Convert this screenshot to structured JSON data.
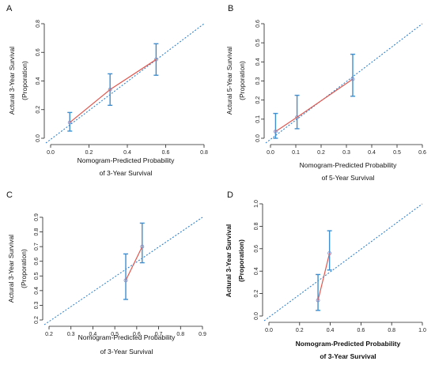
{
  "colors": {
    "calibration_line": "#e0584f",
    "diagonal": "#1f78c8",
    "error_bar": "#3f8fd0",
    "point": "#8a8fc0",
    "axis": "#222222"
  },
  "chart_data": [
    {
      "panel": "A",
      "type": "scatter",
      "xlabel": [
        "Nomogram-Predicted Probability",
        "of 3-Year Survival"
      ],
      "ylabel": [
        "Actural 3-Year Survival",
        "(Proporation)"
      ],
      "xlim": [
        0,
        0.8
      ],
      "ylim": [
        0,
        0.8
      ],
      "xticks": [
        "0.0",
        "0.2",
        "0.4",
        "0.6",
        "0.8"
      ],
      "yticks": [
        "0.0",
        "0.2",
        "0.4",
        "0.6",
        "0.8"
      ],
      "reference_line": {
        "style": "dotted",
        "slope": 1,
        "intercept": 0
      },
      "x": [
        0.1,
        0.31,
        0.55
      ],
      "y": [
        0.11,
        0.34,
        0.55
      ],
      "y_low": [
        0.05,
        0.23,
        0.44
      ],
      "y_high": [
        0.18,
        0.45,
        0.66
      ]
    },
    {
      "panel": "B",
      "type": "scatter",
      "xlabel": [
        "Nomogram-Predicted Probability",
        "of 5-Year Survival"
      ],
      "ylabel": [
        "Actural 5-Year Survival",
        "(Proporation)"
      ],
      "xlim": [
        0,
        0.6
      ],
      "ylim": [
        0,
        0.6
      ],
      "xticks": [
        "0.0",
        "0.1",
        "0.2",
        "0.3",
        "0.4",
        "0.5",
        "0.6"
      ],
      "yticks": [
        "0.0",
        "0.1",
        "0.2",
        "0.3",
        "0.4",
        "0.5",
        "0.6"
      ],
      "reference_line": {
        "style": "dotted",
        "slope": 1,
        "intercept": 0
      },
      "x": [
        0.02,
        0.105,
        0.325
      ],
      "y": [
        0.035,
        0.11,
        0.31
      ],
      "y_low": [
        0.0,
        0.05,
        0.22
      ],
      "y_high": [
        0.13,
        0.225,
        0.44
      ]
    },
    {
      "panel": "C",
      "type": "scatter",
      "xlabel": [
        "Nomogram-Predicted Probability",
        "of 3-Year Survival"
      ],
      "ylabel": [
        "Actural 3-Year Survival",
        "(Proporation)"
      ],
      "xlim": [
        0.2,
        0.9
      ],
      "ylim": [
        0.2,
        0.9
      ],
      "xticks": [
        "0.2",
        "0.3",
        "0.4",
        "0.5",
        "0.6",
        "0.7",
        "0.8",
        "0.9"
      ],
      "yticks": [
        "0.2",
        "0.3",
        "0.4",
        "0.5",
        "0.6",
        "0.7",
        "0.8",
        "0.9"
      ],
      "reference_line": {
        "style": "dotted",
        "slope": 1,
        "intercept": 0
      },
      "x": [
        0.55,
        0.625
      ],
      "y": [
        0.47,
        0.7
      ],
      "y_low": [
        0.34,
        0.59
      ],
      "y_high": [
        0.65,
        0.86
      ]
    },
    {
      "panel": "D",
      "type": "scatter",
      "xlabel": [
        "Nomogram-Predicted Probability",
        "of 3-Year Survival"
      ],
      "ylabel": [
        "Actural 3-Year Survival",
        "(Proporation)"
      ],
      "xlim": [
        0,
        1.0
      ],
      "ylim": [
        0,
        1.0
      ],
      "xticks": [
        "0.0",
        "0.2",
        "0.4",
        "0.6",
        "0.8",
        "1.0"
      ],
      "yticks": [
        "0.0",
        "0.2",
        "0.4",
        "0.6",
        "0.8",
        "1.0"
      ],
      "reference_line": {
        "style": "dotted",
        "slope": 1,
        "intercept": 0
      },
      "x": [
        0.32,
        0.395
      ],
      "y": [
        0.14,
        0.56
      ],
      "y_low": [
        0.05,
        0.41
      ],
      "y_high": [
        0.37,
        0.76
      ]
    }
  ]
}
